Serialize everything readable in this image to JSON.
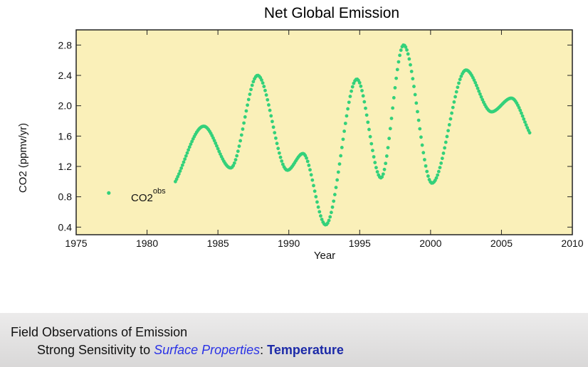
{
  "chart_data": {
    "type": "scatter",
    "title": "Net Global Emission",
    "xlabel": "Year",
    "ylabel": "CO2 (ppmv/yr)",
    "xlim": [
      1975,
      2010
    ],
    "ylim": [
      0.3,
      3.0
    ],
    "xticks": [
      1975,
      1980,
      1985,
      1990,
      1995,
      2000,
      2005,
      2010
    ],
    "yticks": [
      0.4,
      0.8,
      1.2,
      1.6,
      2.0,
      2.4,
      2.8
    ],
    "grid": false,
    "legend": {
      "placement": "left",
      "label": "CO2",
      "superscript": "obs"
    },
    "series": [
      {
        "name": "CO2 obs",
        "color": "#33d17a",
        "points": [
          [
            1982.0,
            1.0
          ],
          [
            1984.0,
            1.73
          ],
          [
            1985.9,
            1.18
          ],
          [
            1987.8,
            2.4
          ],
          [
            1989.9,
            1.15
          ],
          [
            1991.0,
            1.37
          ],
          [
            1992.6,
            0.43
          ],
          [
            1994.8,
            2.35
          ],
          [
            1996.5,
            1.05
          ],
          [
            1998.1,
            2.8
          ],
          [
            2000.1,
            0.98
          ],
          [
            2002.5,
            2.47
          ],
          [
            2004.3,
            1.92
          ],
          [
            2005.7,
            2.1
          ],
          [
            2007.0,
            1.64
          ]
        ]
      }
    ],
    "legend_marker": [
      1977.3,
      0.85
    ],
    "plot_background": "#faf0b9"
  },
  "footer": {
    "line1": "Field Observations of Emission",
    "line2_prefix": "Strong Sensitivity to ",
    "line2_highlight": "Surface Properties",
    "line2_colon": ":  ",
    "line2_emphasis": "Temperature"
  }
}
